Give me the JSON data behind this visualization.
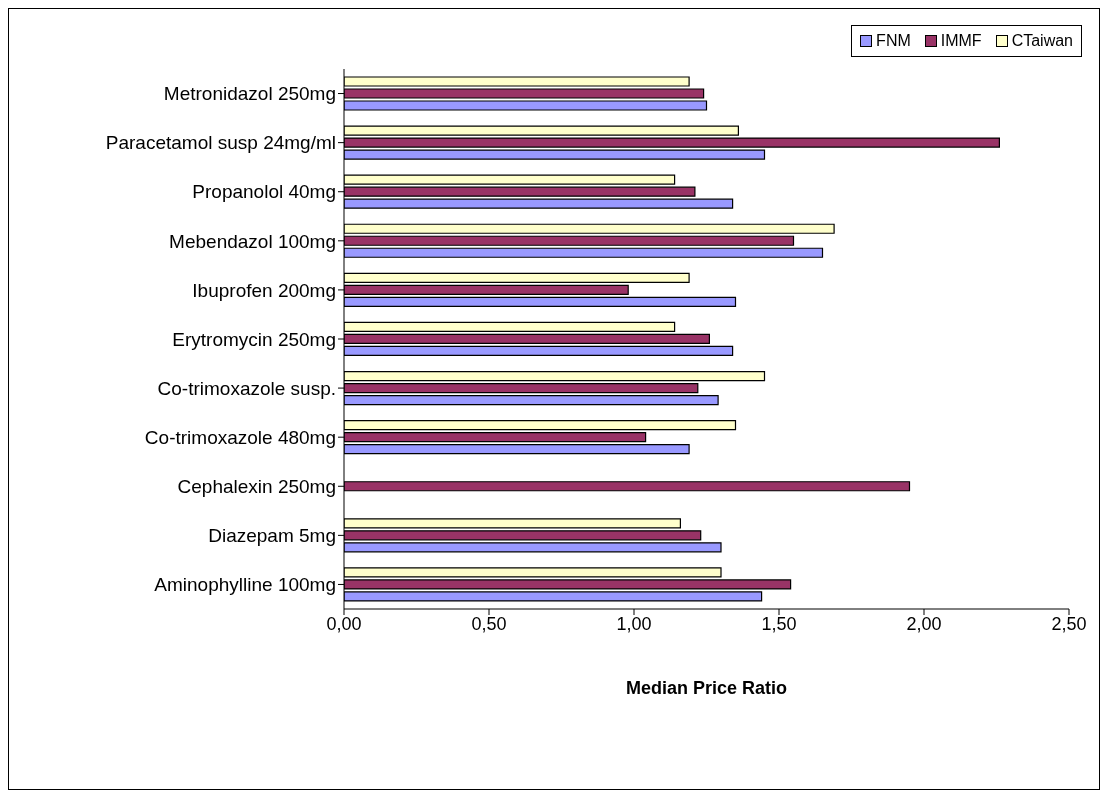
{
  "chart_data": {
    "type": "bar",
    "orientation": "horizontal",
    "xlabel": "Median Price Ratio",
    "categories": [
      "Metronidazol 250mg",
      "Paracetamol susp 24mg/ml",
      "Propanolol 40mg",
      "Mebendazol 100mg",
      "Ibuprofen 200mg",
      "Erytromycin 250mg",
      "Co-trimoxazole susp.",
      "Co-trimoxazole 480mg",
      "Cephalexin 250mg",
      "Diazepam 5mg",
      "Aminophylline 100mg"
    ],
    "series": [
      {
        "name": "FNM",
        "color": "#9999ff",
        "values": [
          1.25,
          1.45,
          1.34,
          1.65,
          1.35,
          1.34,
          1.29,
          1.19,
          null,
          1.3,
          1.44
        ]
      },
      {
        "name": "IMMF",
        "color": "#993366",
        "values": [
          1.24,
          2.26,
          1.21,
          1.55,
          0.98,
          1.26,
          1.22,
          1.04,
          1.95,
          1.23,
          1.54
        ]
      },
      {
        "name": "CTaiwan",
        "color": "#ffffcc",
        "values": [
          1.19,
          1.36,
          1.14,
          1.69,
          1.19,
          1.14,
          1.45,
          1.35,
          null,
          1.16,
          1.3
        ]
      }
    ],
    "xlim": [
      0,
      2.5
    ],
    "xticks": [
      {
        "value": 0,
        "label": "0,00"
      },
      {
        "value": 0.5,
        "label": "0,50"
      },
      {
        "value": 1,
        "label": "1,00"
      },
      {
        "value": 1.5,
        "label": "1,50"
      },
      {
        "value": 2,
        "label": "2,00"
      },
      {
        "value": 2.5,
        "label": "2,50"
      }
    ],
    "grid": false,
    "legend": "top right"
  }
}
